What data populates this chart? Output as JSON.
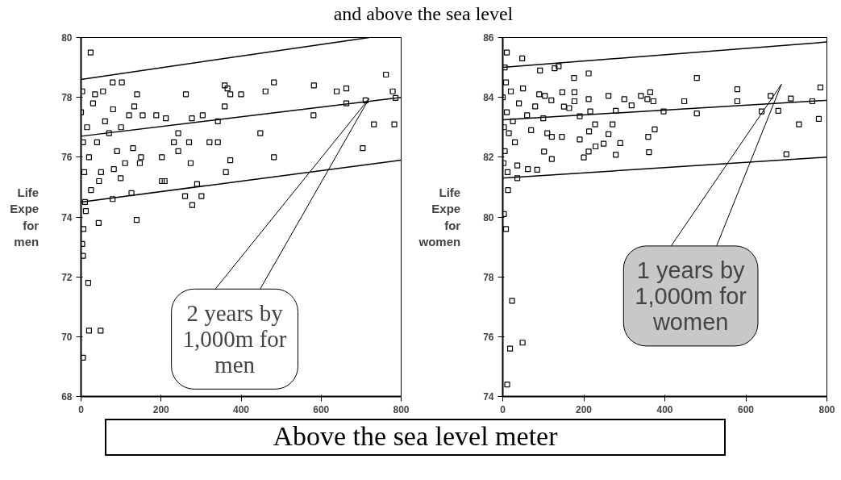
{
  "chart_data": [
    {
      "type": "scatter",
      "title": "and above the sea level",
      "xlabel": "Above the sea level meter",
      "ylabel": "Life\nExpe\nfor\nmen",
      "xlim": [
        0,
        800
      ],
      "ylim": [
        68,
        80
      ],
      "xticks": [
        0,
        200,
        400,
        600,
        800
      ],
      "yticks": [
        68,
        70,
        72,
        74,
        76,
        78,
        80
      ],
      "marker": "square",
      "grid": false,
      "series": [
        {
          "color": "#000000",
          "x": [
            24,
            762,
            482,
            582,
            639,
            663,
            779,
            786,
            711,
            663,
            359,
            366,
            400,
            373,
            461,
            262,
            359,
            581,
            732,
            783,
            448,
            704,
            482,
            373,
            362,
            274,
            270,
            321,
            342,
            277,
            304,
            342,
            202,
            209,
            290,
            260,
            301,
            278,
            139,
            126,
            79,
            99,
            82,
            150,
            202,
            243,
            232,
            212,
            188,
            154,
            133,
            102,
            79,
            140,
            243,
            147,
            44,
            3,
            18,
            20,
            49,
            5,
            5,
            0,
            5,
            8,
            3,
            10,
            15,
            20,
            30,
            40,
            50,
            60,
            70,
            80,
            90,
            100,
            110,
            120,
            130,
            35,
            55,
            25,
            12,
            6,
            45
          ],
          "values": [
            79.5,
            78.76,
            78.5,
            78.4,
            78.2,
            78.3,
            78.2,
            77.98,
            77.9,
            77.8,
            78.4,
            78.3,
            78.1,
            78.1,
            78.2,
            78.1,
            77.7,
            77.4,
            77.1,
            77.1,
            76.8,
            76.3,
            76.0,
            75.9,
            75.5,
            75.8,
            76.5,
            76.5,
            76.5,
            77.3,
            77.4,
            77.2,
            75.2,
            75.2,
            75.1,
            74.7,
            74.7,
            74.4,
            73.9,
            74.8,
            74.6,
            75.3,
            75.6,
            76.0,
            76.0,
            76.2,
            76.5,
            77.3,
            77.4,
            77.4,
            77.7,
            78.5,
            78.5,
            78.1,
            76.8,
            75.8,
            73.8,
            73.1,
            71.8,
            70.2,
            70.2,
            69.3,
            72.7,
            77.5,
            76.5,
            75.5,
            78.2,
            74.5,
            77.0,
            76.0,
            77.8,
            76.5,
            75.5,
            77.2,
            76.8,
            77.6,
            76.2,
            77.0,
            75.8,
            77.4,
            76.3,
            78.1,
            78.2,
            74.9,
            74.2,
            73.6,
            75.2
          ]
        },
        {
          "type": "line",
          "marker": "none",
          "color": "#000000",
          "x": [
            0,
            800
          ],
          "values": [
            76.7,
            78.0
          ]
        },
        {
          "type": "line",
          "marker": "none",
          "color": "#000000",
          "x": [
            0,
            720
          ],
          "values": [
            78.6,
            80.0
          ]
        },
        {
          "type": "line",
          "marker": "none",
          "color": "#000000",
          "x": [
            0,
            800
          ],
          "values": [
            74.5,
            75.9
          ]
        }
      ],
      "annotations": [
        "2 years by\n1,000m for\nmen"
      ]
    },
    {
      "type": "scatter",
      "ylabel": "Life\nExpe\nfor\nwomen",
      "xlim": [
        0,
        800
      ],
      "ylim": [
        74,
        86
      ],
      "xticks": [
        0,
        200,
        400,
        600,
        800
      ],
      "yticks": [
        74,
        76,
        78,
        80,
        82,
        84,
        86
      ],
      "marker": "square",
      "grid": false,
      "series": [
        {
          "color": "#000000",
          "x": [
            479,
            212,
            176,
            128,
            138,
            92,
            48,
            10,
            579,
            784,
            711,
            764,
            661,
            639,
            680,
            780,
            731,
            700,
            579,
            479,
            448,
            397,
            372,
            364,
            357,
            341,
            300,
            318,
            279,
            261,
            212,
            216,
            271,
            261,
            228,
            213,
            190,
            229,
            249,
            290,
            279,
            359,
            375,
            361,
            200,
            212,
            121,
            102,
            85,
            62,
            36,
            36,
            121,
            146,
            147,
            177,
            177,
            151,
            104,
            164,
            190,
            13,
            3,
            8,
            23,
            18,
            49,
            11,
            0,
            3,
            5,
            8,
            10,
            15,
            20,
            25,
            30,
            40,
            50,
            60,
            70,
            80,
            90,
            100,
            110,
            120,
            5,
            2,
            12
          ],
          "values": [
            84.65,
            84.8,
            84.65,
            84.97,
            85.04,
            84.9,
            85.3,
            85.5,
            84.27,
            84.33,
            83.96,
            83.87,
            84.05,
            83.53,
            83.55,
            83.28,
            83.1,
            82.1,
            83.87,
            83.46,
            83.87,
            83.53,
            83.87,
            84.17,
            83.94,
            84.05,
            83.94,
            83.73,
            83.55,
            84.05,
            83.94,
            83.53,
            83.1,
            82.77,
            83.1,
            82.86,
            82.59,
            82.36,
            82.45,
            82.47,
            82.08,
            82.68,
            82.93,
            82.17,
            81.99,
            82.19,
            81.94,
            82.19,
            81.58,
            81.6,
            81.72,
            81.3,
            82.68,
            82.68,
            84.17,
            84.17,
            83.87,
            83.69,
            84.05,
            83.64,
            83.37,
            80.9,
            80.1,
            79.6,
            77.2,
            75.6,
            75.8,
            74.4,
            84.0,
            83.0,
            82.2,
            84.5,
            83.5,
            82.8,
            84.2,
            83.2,
            82.5,
            83.8,
            84.3,
            83.4,
            82.9,
            83.7,
            84.1,
            83.3,
            82.8,
            83.9,
            85.0,
            81.8,
            81.5
          ]
        },
        {
          "type": "line",
          "marker": "none",
          "color": "#000000",
          "x": [
            0,
            800
          ],
          "values": [
            83.25,
            83.9
          ]
        },
        {
          "type": "line",
          "marker": "none",
          "color": "#000000",
          "x": [
            0,
            800
          ],
          "values": [
            85.0,
            85.85
          ]
        },
        {
          "type": "line",
          "marker": "none",
          "color": "#000000",
          "x": [
            0,
            800
          ],
          "values": [
            81.3,
            82.0
          ]
        }
      ],
      "annotations": [
        "1 years by\n1,000m for\nwomen"
      ]
    }
  ]
}
